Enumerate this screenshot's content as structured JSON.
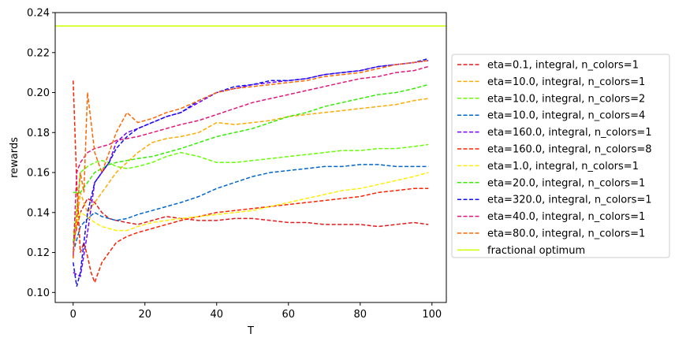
{
  "chart_data": {
    "type": "line",
    "title": "",
    "xlabel": "T",
    "ylabel": "rewards",
    "xlim": [
      -5,
      104
    ],
    "ylim": [
      0.095,
      0.24
    ],
    "xticks": [
      0,
      20,
      40,
      60,
      80,
      100
    ],
    "yticks": [
      0.1,
      0.12,
      0.14,
      0.16,
      0.18,
      0.2,
      0.22,
      0.24
    ],
    "xtick_labels": [
      "0",
      "20",
      "40",
      "60",
      "80",
      "100"
    ],
    "ytick_labels": [
      "0.10",
      "0.12",
      "0.14",
      "0.16",
      "0.18",
      "0.20",
      "0.22",
      "0.24"
    ],
    "legend_position": "center-right (outside axes)",
    "grid": false,
    "series": [
      {
        "name": "eta=0.1, integral, n_colors=1",
        "color": "#e31a1c",
        "style": "dashed",
        "x": [
          0,
          2,
          4,
          6,
          8,
          10,
          12,
          15,
          18,
          22,
          26,
          30,
          35,
          40,
          45,
          50,
          55,
          60,
          65,
          70,
          75,
          80,
          85,
          90,
          95,
          99
        ],
        "y": [
          0.125,
          0.14,
          0.147,
          0.145,
          0.14,
          0.137,
          0.136,
          0.135,
          0.134,
          0.136,
          0.138,
          0.137,
          0.136,
          0.136,
          0.137,
          0.137,
          0.136,
          0.135,
          0.135,
          0.134,
          0.134,
          0.134,
          0.133,
          0.134,
          0.135,
          0.134
        ]
      },
      {
        "name": "eta=10.0, integral, n_colors=1",
        "color": "#ffaa00",
        "style": "dashed",
        "x": [
          0,
          2,
          4,
          6,
          8,
          10,
          12,
          15,
          18,
          22,
          26,
          30,
          35,
          40,
          45,
          50,
          55,
          60,
          65,
          70,
          75,
          80,
          85,
          90,
          95,
          99
        ],
        "y": [
          0.12,
          0.15,
          0.14,
          0.145,
          0.15,
          0.155,
          0.16,
          0.165,
          0.17,
          0.175,
          0.177,
          0.178,
          0.18,
          0.185,
          0.184,
          0.185,
          0.186,
          0.188,
          0.189,
          0.19,
          0.191,
          0.192,
          0.193,
          0.194,
          0.196,
          0.197
        ]
      },
      {
        "name": "eta=10.0, integral, n_colors=2",
        "color": "#66ff00",
        "style": "dashed",
        "x": [
          0,
          2,
          4,
          6,
          8,
          10,
          12,
          15,
          18,
          22,
          26,
          30,
          35,
          40,
          45,
          50,
          55,
          60,
          65,
          70,
          75,
          80,
          85,
          90,
          95,
          99
        ],
        "y": [
          0.125,
          0.16,
          0.163,
          0.165,
          0.166,
          0.165,
          0.163,
          0.162,
          0.163,
          0.165,
          0.168,
          0.17,
          0.168,
          0.165,
          0.165,
          0.166,
          0.167,
          0.168,
          0.169,
          0.17,
          0.171,
          0.171,
          0.172,
          0.172,
          0.173,
          0.174
        ]
      },
      {
        "name": "eta=10.0, integral, n_colors=4",
        "color": "#0066cc",
        "style": "dashed",
        "x": [
          0,
          2,
          4,
          6,
          8,
          10,
          12,
          15,
          18,
          22,
          26,
          30,
          35,
          40,
          45,
          50,
          55,
          60,
          65,
          70,
          75,
          80,
          85,
          90,
          95,
          99
        ],
        "y": [
          0.12,
          0.133,
          0.137,
          0.14,
          0.138,
          0.137,
          0.136,
          0.137,
          0.139,
          0.141,
          0.143,
          0.145,
          0.148,
          0.152,
          0.155,
          0.158,
          0.16,
          0.161,
          0.162,
          0.163,
          0.163,
          0.164,
          0.164,
          0.163,
          0.163,
          0.163
        ]
      },
      {
        "name": "eta=160.0, integral, n_colors=1",
        "color": "#7700ff",
        "style": "dashed",
        "x": [
          0,
          2,
          4,
          6,
          8,
          10,
          12,
          15,
          18,
          22,
          26,
          30,
          35,
          40,
          45,
          50,
          55,
          60,
          65,
          70,
          75,
          80,
          85,
          90,
          95,
          99
        ],
        "y": [
          0.11,
          0.108,
          0.13,
          0.155,
          0.16,
          0.165,
          0.175,
          0.18,
          0.182,
          0.185,
          0.188,
          0.19,
          0.195,
          0.2,
          0.202,
          0.204,
          0.205,
          0.206,
          0.207,
          0.209,
          0.21,
          0.211,
          0.213,
          0.214,
          0.215,
          0.216
        ]
      },
      {
        "name": "eta=160.0, integral, n_colors=8",
        "color": "#ff2200",
        "style": "dashed",
        "x": [
          0,
          1,
          2,
          3,
          4,
          5,
          6,
          8,
          10,
          12,
          15,
          18,
          22,
          26,
          30,
          35,
          40,
          45,
          50,
          55,
          60,
          65,
          70,
          75,
          80,
          85,
          90,
          95,
          99
        ],
        "y": [
          0.206,
          0.155,
          0.12,
          0.125,
          0.118,
          0.11,
          0.105,
          0.115,
          0.12,
          0.125,
          0.128,
          0.13,
          0.132,
          0.134,
          0.136,
          0.138,
          0.14,
          0.141,
          0.142,
          0.143,
          0.144,
          0.145,
          0.146,
          0.147,
          0.148,
          0.15,
          0.151,
          0.152,
          0.152
        ]
      },
      {
        "name": "eta=1.0, integral, n_colors=1",
        "color": "#ffee00",
        "style": "dashed",
        "x": [
          0,
          2,
          4,
          6,
          8,
          10,
          12,
          15,
          18,
          22,
          26,
          30,
          35,
          40,
          45,
          50,
          55,
          60,
          65,
          70,
          75,
          80,
          85,
          90,
          95,
          99
        ],
        "y": [
          0.13,
          0.14,
          0.138,
          0.135,
          0.133,
          0.132,
          0.131,
          0.131,
          0.133,
          0.135,
          0.136,
          0.137,
          0.138,
          0.139,
          0.14,
          0.141,
          0.143,
          0.145,
          0.147,
          0.149,
          0.151,
          0.152,
          0.154,
          0.156,
          0.158,
          0.16
        ]
      },
      {
        "name": "eta=20.0, integral, n_colors=1",
        "color": "#33ee00",
        "style": "dashed",
        "x": [
          0,
          2,
          4,
          6,
          8,
          10,
          12,
          15,
          18,
          22,
          26,
          30,
          35,
          40,
          45,
          50,
          55,
          60,
          65,
          70,
          75,
          80,
          85,
          90,
          95,
          99
        ],
        "y": [
          0.15,
          0.15,
          0.155,
          0.16,
          0.162,
          0.164,
          0.165,
          0.166,
          0.167,
          0.168,
          0.17,
          0.172,
          0.175,
          0.178,
          0.18,
          0.182,
          0.185,
          0.188,
          0.19,
          0.193,
          0.195,
          0.197,
          0.199,
          0.2,
          0.202,
          0.204
        ]
      },
      {
        "name": "eta=320.0, integral, n_colors=1",
        "color": "#1111ee",
        "style": "dashed",
        "x": [
          0,
          1,
          2,
          4,
          6,
          8,
          10,
          12,
          15,
          18,
          22,
          26,
          30,
          35,
          40,
          45,
          50,
          55,
          60,
          65,
          70,
          75,
          80,
          85,
          90,
          95,
          99
        ],
        "y": [
          0.115,
          0.103,
          0.11,
          0.14,
          0.155,
          0.16,
          0.165,
          0.172,
          0.178,
          0.182,
          0.185,
          0.188,
          0.19,
          0.196,
          0.2,
          0.203,
          0.204,
          0.206,
          0.206,
          0.207,
          0.209,
          0.21,
          0.211,
          0.213,
          0.214,
          0.215,
          0.217
        ]
      },
      {
        "name": "eta=40.0, integral, n_colors=1",
        "color": "#e0147a",
        "style": "dashed",
        "x": [
          0,
          1,
          2,
          4,
          6,
          8,
          10,
          12,
          15,
          18,
          22,
          26,
          30,
          35,
          40,
          45,
          50,
          55,
          60,
          65,
          70,
          75,
          80,
          85,
          90,
          95,
          99
        ],
        "y": [
          0.118,
          0.16,
          0.165,
          0.17,
          0.172,
          0.173,
          0.174,
          0.176,
          0.177,
          0.178,
          0.18,
          0.182,
          0.184,
          0.186,
          0.189,
          0.192,
          0.195,
          0.197,
          0.199,
          0.201,
          0.203,
          0.205,
          0.207,
          0.208,
          0.21,
          0.211,
          0.213
        ]
      },
      {
        "name": "eta=80.0, integral, n_colors=1",
        "color": "#ff6600",
        "style": "dashed",
        "x": [
          0,
          2,
          3,
          4,
          6,
          8,
          10,
          12,
          15,
          18,
          22,
          26,
          30,
          35,
          40,
          45,
          50,
          55,
          60,
          65,
          70,
          75,
          80,
          85,
          90,
          95,
          99
        ],
        "y": [
          0.117,
          0.16,
          0.15,
          0.2,
          0.17,
          0.16,
          0.17,
          0.18,
          0.19,
          0.185,
          0.187,
          0.19,
          0.192,
          0.196,
          0.2,
          0.202,
          0.203,
          0.204,
          0.205,
          0.206,
          0.208,
          0.209,
          0.21,
          0.212,
          0.214,
          0.215,
          0.216
        ]
      },
      {
        "name": "fractional optimum",
        "color": "#ccff00",
        "style": "solid",
        "y_const": 0.2333
      }
    ]
  }
}
